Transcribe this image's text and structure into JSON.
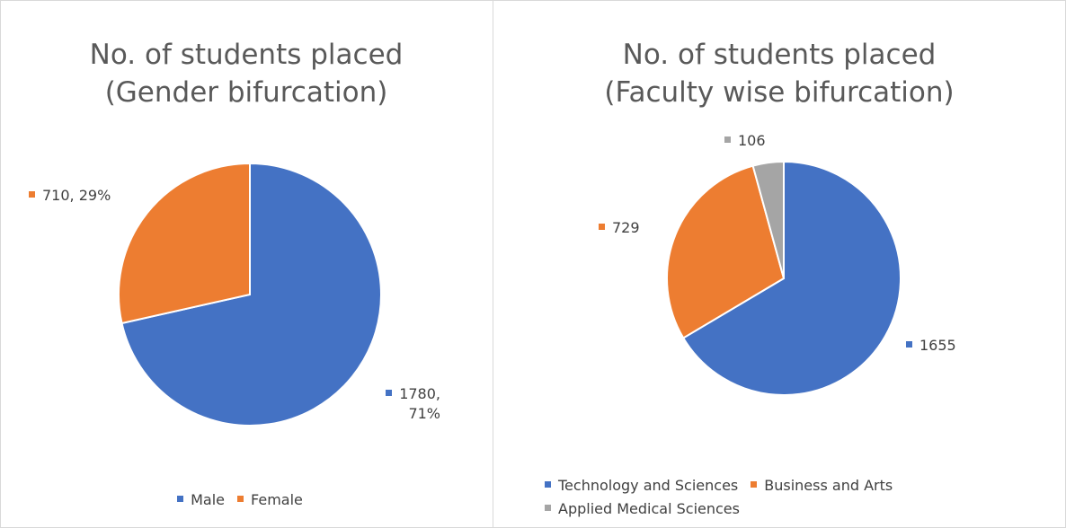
{
  "chart_data": [
    {
      "type": "pie",
      "title": [
        "No. of students placed",
        "(Gender bifurcation)"
      ],
      "categories": [
        "Male",
        "Female"
      ],
      "values": [
        1780,
        710
      ],
      "value_labels": [
        "1780, 71%",
        "710, 29%"
      ],
      "colors": [
        "#4472c4",
        "#ed7d31"
      ],
      "legend": "bottom"
    },
    {
      "type": "pie",
      "title": [
        "No. of students placed",
        "(Faculty wise bifurcation)"
      ],
      "categories": [
        "Technology and Sciences",
        "Business and Arts",
        "Applied Medical Sciences"
      ],
      "values": [
        1655,
        729,
        106
      ],
      "colors": [
        "#4472c4",
        "#ed7d31",
        "#a5a5a5"
      ],
      "legend": "bottom"
    }
  ]
}
